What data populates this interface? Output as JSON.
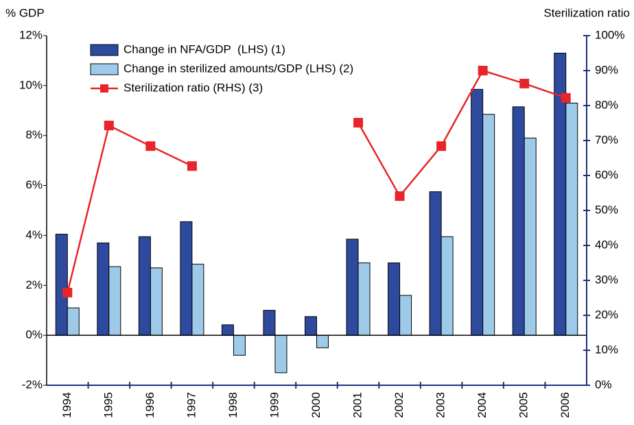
{
  "chart_data": {
    "type": "bar_line",
    "y_label": "% GDP",
    "y2_label": "Sterilization ratio",
    "categories": [
      "1994",
      "1995",
      "1996",
      "1997",
      "1998",
      "1999",
      "2000",
      "2001",
      "2002",
      "2003",
      "2004",
      "2005",
      "2006"
    ],
    "series": [
      {
        "name": "Change in NFA/GDP  (LHS) (1)",
        "type": "bar",
        "color": "#2e4a9e",
        "values": [
          4.05,
          3.7,
          3.95,
          4.55,
          0.42,
          1.0,
          0.75,
          3.85,
          2.9,
          5.75,
          9.85,
          9.15,
          11.3
        ]
      },
      {
        "name": "Change in sterilized amounts/GDP (LHS) (2)",
        "type": "bar",
        "color": "#9ecae9",
        "values": [
          1.1,
          2.75,
          2.7,
          2.85,
          -0.8,
          -1.5,
          -0.5,
          2.9,
          1.6,
          3.95,
          8.85,
          7.9,
          9.3
        ]
      },
      {
        "name": "Sterilization ratio (RHS) (3)",
        "type": "line",
        "axis": "y2",
        "color": "#e8252a",
        "values": [
          26.5,
          74.3,
          68.4,
          62.7,
          null,
          null,
          null,
          75.1,
          54.1,
          68.4,
          90,
          86.3,
          82.2
        ]
      }
    ],
    "ylim": [
      -2,
      12
    ],
    "yticks": [
      {
        "value": -2,
        "label": "-2%"
      },
      {
        "value": 0,
        "label": "0%"
      },
      {
        "value": 2,
        "label": "2%"
      },
      {
        "value": 4,
        "label": "4%"
      },
      {
        "value": 6,
        "label": "6%"
      },
      {
        "value": 8,
        "label": "8%"
      },
      {
        "value": 10,
        "label": "10%"
      },
      {
        "value": 12,
        "label": "12%"
      }
    ],
    "y2lim": [
      0,
      100
    ],
    "y2ticks": [
      {
        "value": 0,
        "label": "0%"
      },
      {
        "value": 10,
        "label": "10%"
      },
      {
        "value": 20,
        "label": "20%"
      },
      {
        "value": 30,
        "label": "30%"
      },
      {
        "value": 40,
        "label": "40%"
      },
      {
        "value": 50,
        "label": "50%"
      },
      {
        "value": 60,
        "label": "60%"
      },
      {
        "value": 70,
        "label": "70%"
      },
      {
        "value": 80,
        "label": "80%"
      },
      {
        "value": 90,
        "label": "90%"
      },
      {
        "value": 100,
        "label": "100%"
      }
    ]
  }
}
